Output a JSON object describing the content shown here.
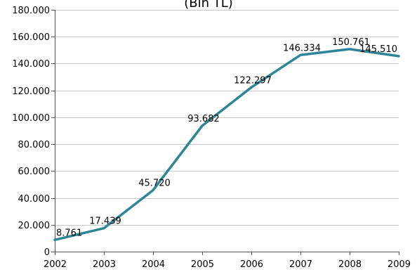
{
  "chart_data": {
    "type": "line",
    "title": "(Bin TL)",
    "x": [
      "2002",
      "2003",
      "2004",
      "2005",
      "2006",
      "2007",
      "2008",
      "2009"
    ],
    "y_tick_labels": [
      "0",
      "20.000",
      "40.000",
      "60.000",
      "80.000",
      "100.000",
      "120.000",
      "140.000",
      "160.000",
      "180.000"
    ],
    "ylim": [
      0,
      180000
    ],
    "grid": true,
    "series": [
      {
        "values": [
          8761,
          17439,
          45720,
          93682,
          122297,
          146334,
          150761,
          145510
        ],
        "labels": [
          "8.761",
          "17.439",
          "45.720",
          "93.682",
          "122.297",
          "146.334",
          "150.761",
          "145.510"
        ],
        "color": "#2e8596"
      }
    ]
  }
}
